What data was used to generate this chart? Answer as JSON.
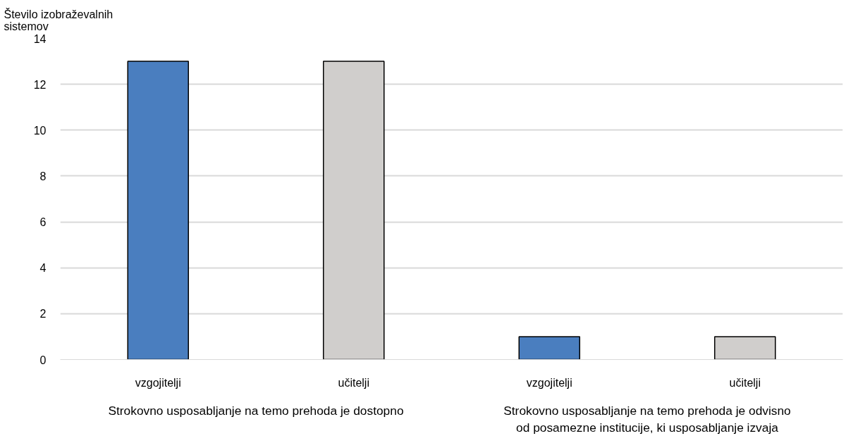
{
  "chart_data": {
    "type": "bar",
    "ylabel": "Število izobraževalnih sistemov",
    "categories": [
      "vzgojitelji",
      "učitelji",
      "vzgojitelji",
      "učitelji"
    ],
    "values": [
      13,
      13,
      1,
      1
    ],
    "colors": [
      "#4a7ebf",
      "#d0cecc",
      "#4a7ebf",
      "#d0cecc"
    ],
    "annotations": [
      "Strokovno usposabljanje na temo prehoda je dostopno",
      "Strokovno usposabljanje na temo prehoda je odvisno od posamezne institucije, ki usposabljanje izvaja"
    ],
    "ylim": [
      0,
      14
    ],
    "yticks": [
      0,
      2,
      4,
      6,
      8,
      10,
      12,
      14
    ],
    "grid": "y"
  }
}
